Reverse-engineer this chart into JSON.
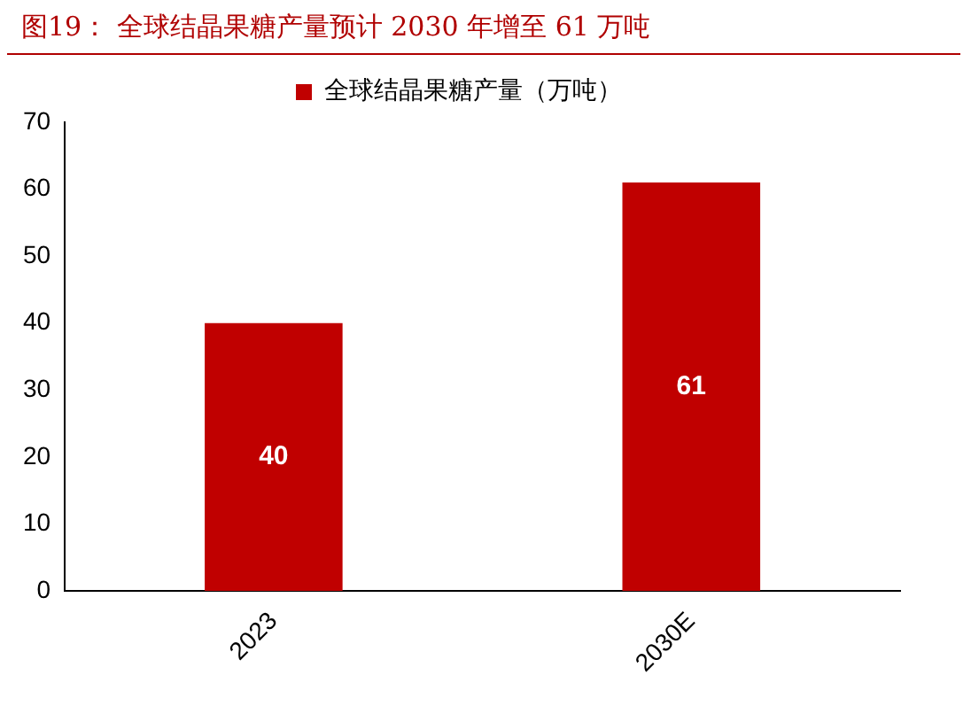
{
  "chart_data": {
    "type": "bar",
    "title": "图19：  全球结晶果糖产量预计 2030 年增至 61 万吨",
    "categories": [
      "2023",
      "2030E"
    ],
    "series": [
      {
        "name": "全球结晶果糖产量（万吨）",
        "color": "#c00000",
        "values": [
          40,
          61
        ]
      }
    ],
    "ylim": [
      0,
      70
    ],
    "yticks": [
      0,
      10,
      20,
      30,
      40,
      50,
      60,
      70
    ],
    "grid": false,
    "legend": "top",
    "data_labels": true
  }
}
